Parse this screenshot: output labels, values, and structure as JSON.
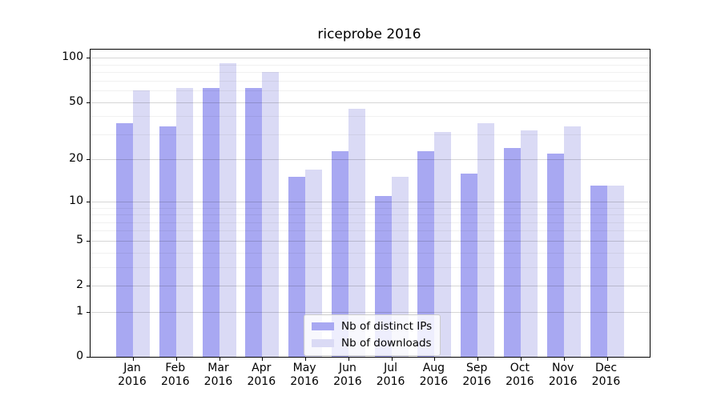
{
  "chart": {
    "title": "riceprobe 2016"
  },
  "chart_data": {
    "type": "bar",
    "title": "riceprobe 2016",
    "xlabel": "",
    "ylabel": "",
    "yscale": "symlog (y position ~ log10(1+value))",
    "grid": true,
    "categories": [
      "Jan",
      "Feb",
      "Mar",
      "Apr",
      "May",
      "Jun",
      "Jul",
      "Aug",
      "Sep",
      "Oct",
      "Nov",
      "Dec"
    ],
    "year": "2016",
    "series": [
      {
        "name": "Nb of distinct IPs",
        "color": "#a8a8f2",
        "values": [
          36,
          34,
          62,
          62,
          15,
          23,
          11,
          23,
          16,
          24,
          22,
          13
        ]
      },
      {
        "name": "Nb of downloads",
        "color": "#dadaf5",
        "values": [
          60,
          62,
          92,
          80,
          17,
          45,
          15,
          31,
          36,
          32,
          34,
          13
        ]
      }
    ],
    "yticks": [
      100,
      50,
      20,
      10,
      5,
      2,
      1,
      0
    ],
    "minor_gridlines": [
      3,
      4,
      6,
      7,
      8,
      9,
      30,
      40,
      60,
      70,
      80,
      90
    ],
    "ylim": [
      0,
      114
    ],
    "legend_position": "lower center",
    "colors": {
      "bar_distinct_ips": "#a8a8f2",
      "bar_downloads": "#dadaf5",
      "grid_major": "rgba(0,0,0,0.16)",
      "grid_minor": "rgba(0,0,0,0.055)",
      "spine": "#000000",
      "legend_border": "#cccccc"
    }
  }
}
